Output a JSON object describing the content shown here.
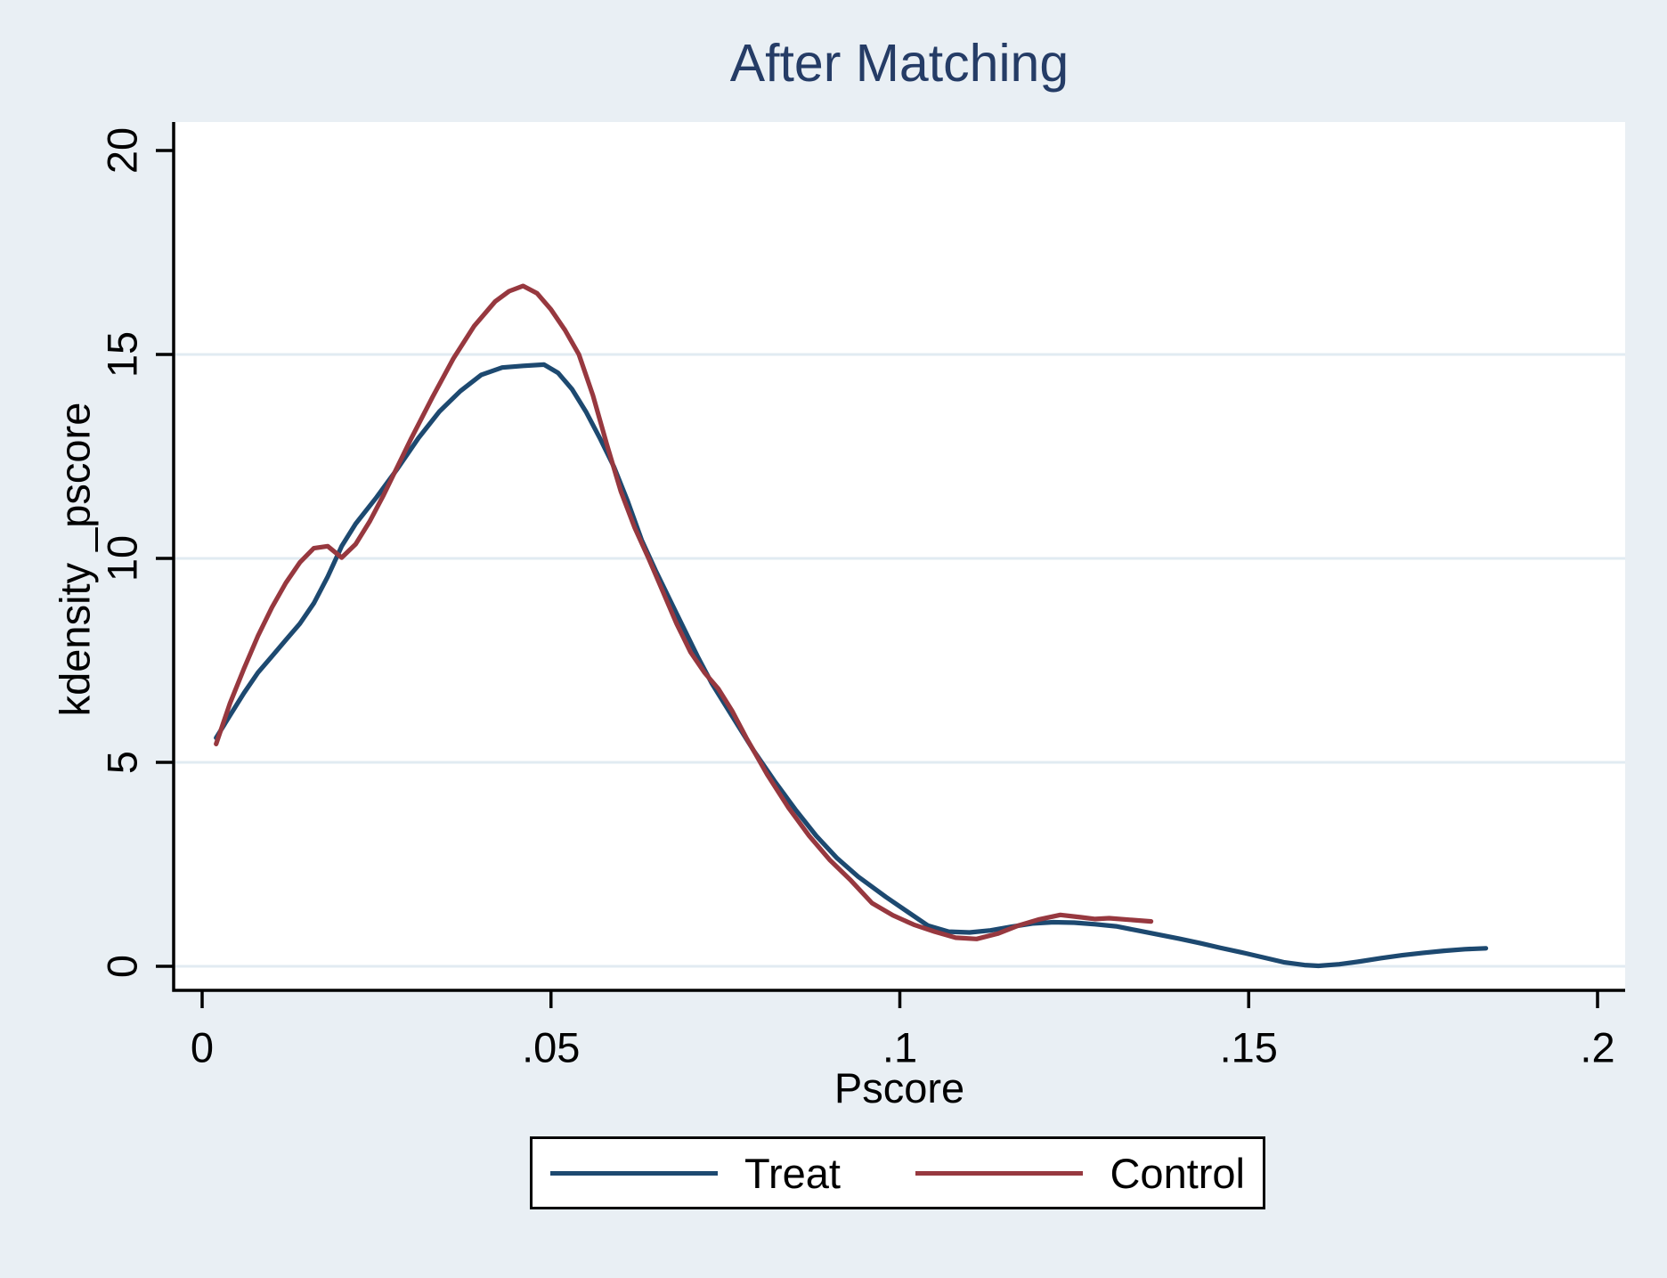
{
  "chart_data": {
    "type": "line",
    "title": "After Matching",
    "xlabel": "Pscore",
    "ylabel": "kdensity _pscore",
    "xlim": [
      0,
      0.2
    ],
    "ylim": [
      0,
      20
    ],
    "x_tick_values": [
      0,
      0.05,
      0.1,
      0.15,
      0.2
    ],
    "x_tick_labels": [
      "0",
      ".05",
      ".1",
      ".15",
      ".2"
    ],
    "y_tick_values": [
      0,
      5,
      10,
      15,
      20
    ],
    "y_tick_labels": [
      "0",
      "5",
      "10",
      "15",
      "20"
    ],
    "grid": "horizontal",
    "grid_lines_at": [
      0,
      5,
      10,
      15
    ],
    "legend_position": "bottom",
    "colors": {
      "background": "#e9eff4",
      "plot_background": "#ffffff",
      "gridline": "#e1ebf2",
      "axis": "#000000",
      "title": "#253c66"
    },
    "series": [
      {
        "name": "Treat",
        "color": "#1d4970",
        "points": [
          [
            0.002,
            5.6
          ],
          [
            0.004,
            6.15
          ],
          [
            0.006,
            6.7
          ],
          [
            0.008,
            7.2
          ],
          [
            0.01,
            7.6
          ],
          [
            0.012,
            8.0
          ],
          [
            0.014,
            8.4
          ],
          [
            0.016,
            8.9
          ],
          [
            0.018,
            9.55
          ],
          [
            0.02,
            10.3
          ],
          [
            0.022,
            10.85
          ],
          [
            0.025,
            11.5
          ],
          [
            0.028,
            12.2
          ],
          [
            0.031,
            12.95
          ],
          [
            0.034,
            13.6
          ],
          [
            0.037,
            14.1
          ],
          [
            0.04,
            14.5
          ],
          [
            0.043,
            14.68
          ],
          [
            0.046,
            14.72
          ],
          [
            0.049,
            14.75
          ],
          [
            0.051,
            14.55
          ],
          [
            0.053,
            14.15
          ],
          [
            0.055,
            13.6
          ],
          [
            0.057,
            12.95
          ],
          [
            0.059,
            12.25
          ],
          [
            0.061,
            11.4
          ],
          [
            0.063,
            10.45
          ],
          [
            0.065,
            9.7
          ],
          [
            0.067,
            9.0
          ],
          [
            0.069,
            8.3
          ],
          [
            0.071,
            7.6
          ],
          [
            0.073,
            6.95
          ],
          [
            0.075,
            6.4
          ],
          [
            0.077,
            5.85
          ],
          [
            0.079,
            5.3
          ],
          [
            0.082,
            4.55
          ],
          [
            0.085,
            3.85
          ],
          [
            0.088,
            3.2
          ],
          [
            0.091,
            2.65
          ],
          [
            0.094,
            2.2
          ],
          [
            0.098,
            1.7
          ],
          [
            0.101,
            1.35
          ],
          [
            0.104,
            1.0
          ],
          [
            0.107,
            0.85
          ],
          [
            0.11,
            0.83
          ],
          [
            0.113,
            0.88
          ],
          [
            0.116,
            0.97
          ],
          [
            0.119,
            1.05
          ],
          [
            0.122,
            1.08
          ],
          [
            0.125,
            1.07
          ],
          [
            0.128,
            1.03
          ],
          [
            0.131,
            0.98
          ],
          [
            0.134,
            0.88
          ],
          [
            0.137,
            0.78
          ],
          [
            0.14,
            0.68
          ],
          [
            0.143,
            0.57
          ],
          [
            0.146,
            0.45
          ],
          [
            0.149,
            0.34
          ],
          [
            0.152,
            0.22
          ],
          [
            0.155,
            0.1
          ],
          [
            0.158,
            0.03
          ],
          [
            0.16,
            0.01
          ],
          [
            0.163,
            0.05
          ],
          [
            0.166,
            0.12
          ],
          [
            0.169,
            0.2
          ],
          [
            0.172,
            0.27
          ],
          [
            0.175,
            0.33
          ],
          [
            0.178,
            0.38
          ],
          [
            0.181,
            0.42
          ],
          [
            0.184,
            0.44
          ]
        ]
      },
      {
        "name": "Control",
        "color": "#97383f",
        "points": [
          [
            0.002,
            5.45
          ],
          [
            0.004,
            6.45
          ],
          [
            0.006,
            7.3
          ],
          [
            0.008,
            8.1
          ],
          [
            0.01,
            8.8
          ],
          [
            0.012,
            9.4
          ],
          [
            0.014,
            9.9
          ],
          [
            0.016,
            10.25
          ],
          [
            0.018,
            10.3
          ],
          [
            0.02,
            10.02
          ],
          [
            0.022,
            10.35
          ],
          [
            0.024,
            10.9
          ],
          [
            0.026,
            11.55
          ],
          [
            0.028,
            12.25
          ],
          [
            0.03,
            12.95
          ],
          [
            0.033,
            13.95
          ],
          [
            0.036,
            14.9
          ],
          [
            0.039,
            15.7
          ],
          [
            0.042,
            16.3
          ],
          [
            0.044,
            16.55
          ],
          [
            0.046,
            16.68
          ],
          [
            0.048,
            16.5
          ],
          [
            0.05,
            16.1
          ],
          [
            0.052,
            15.6
          ],
          [
            0.054,
            15.0
          ],
          [
            0.056,
            14.0
          ],
          [
            0.058,
            12.8
          ],
          [
            0.06,
            11.65
          ],
          [
            0.062,
            10.75
          ],
          [
            0.064,
            10.0
          ],
          [
            0.066,
            9.2
          ],
          [
            0.068,
            8.4
          ],
          [
            0.07,
            7.7
          ],
          [
            0.072,
            7.2
          ],
          [
            0.074,
            6.8
          ],
          [
            0.076,
            6.25
          ],
          [
            0.078,
            5.6
          ],
          [
            0.081,
            4.7
          ],
          [
            0.084,
            3.9
          ],
          [
            0.087,
            3.2
          ],
          [
            0.09,
            2.6
          ],
          [
            0.093,
            2.1
          ],
          [
            0.096,
            1.55
          ],
          [
            0.099,
            1.25
          ],
          [
            0.102,
            1.02
          ],
          [
            0.105,
            0.85
          ],
          [
            0.108,
            0.7
          ],
          [
            0.111,
            0.67
          ],
          [
            0.114,
            0.8
          ],
          [
            0.117,
            1.0
          ],
          [
            0.12,
            1.15
          ],
          [
            0.123,
            1.26
          ],
          [
            0.126,
            1.2
          ],
          [
            0.128,
            1.16
          ],
          [
            0.13,
            1.18
          ],
          [
            0.133,
            1.14
          ],
          [
            0.136,
            1.1
          ]
        ]
      }
    ]
  }
}
